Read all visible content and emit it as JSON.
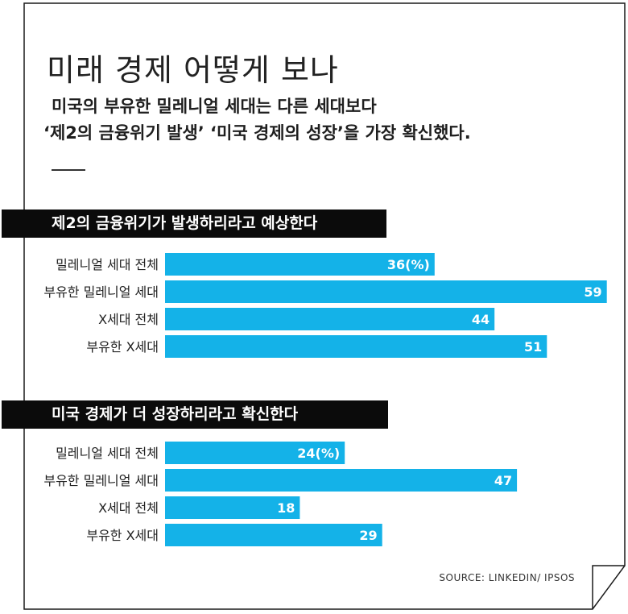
{
  "header": {
    "title": "미래 경제 어떻게 보나",
    "subtitle_line1": "미국의 부유한 밀레니얼 세대는 다른 세대보다",
    "subtitle_line2": "‘제2의 금융위기 발생’ ‘미국 경제의 성장’을 가장 확신했다."
  },
  "source": "SOURCE: LINKEDIN/ IPSOS",
  "colors": {
    "bar": "#14b2e8",
    "header_bg": "#0b0b0b",
    "text": "#222222"
  },
  "chart_data": [
    {
      "type": "bar",
      "orientation": "horizontal",
      "title": "제2의 금융위기가 발생하리라고 예상한다",
      "categories": [
        "밀레니얼 세대 전체",
        "부유한 밀레니얼 세대",
        "X세대 전체",
        "부유한 X세대"
      ],
      "values": [
        36,
        59,
        44,
        51
      ],
      "value_labels": [
        "36(%)",
        "59",
        "44",
        "51"
      ],
      "unit": "%"
    },
    {
      "type": "bar",
      "orientation": "horizontal",
      "title": "미국 경제가 더 성장하리라고 확신한다",
      "categories": [
        "밀레니얼 세대 전체",
        "부유한 밀레니얼 세대",
        "X세대 전체",
        "부유한 X세대"
      ],
      "values": [
        24,
        47,
        18,
        29
      ],
      "value_labels": [
        "24(%)",
        "47",
        "18",
        "29"
      ],
      "unit": "%"
    }
  ]
}
